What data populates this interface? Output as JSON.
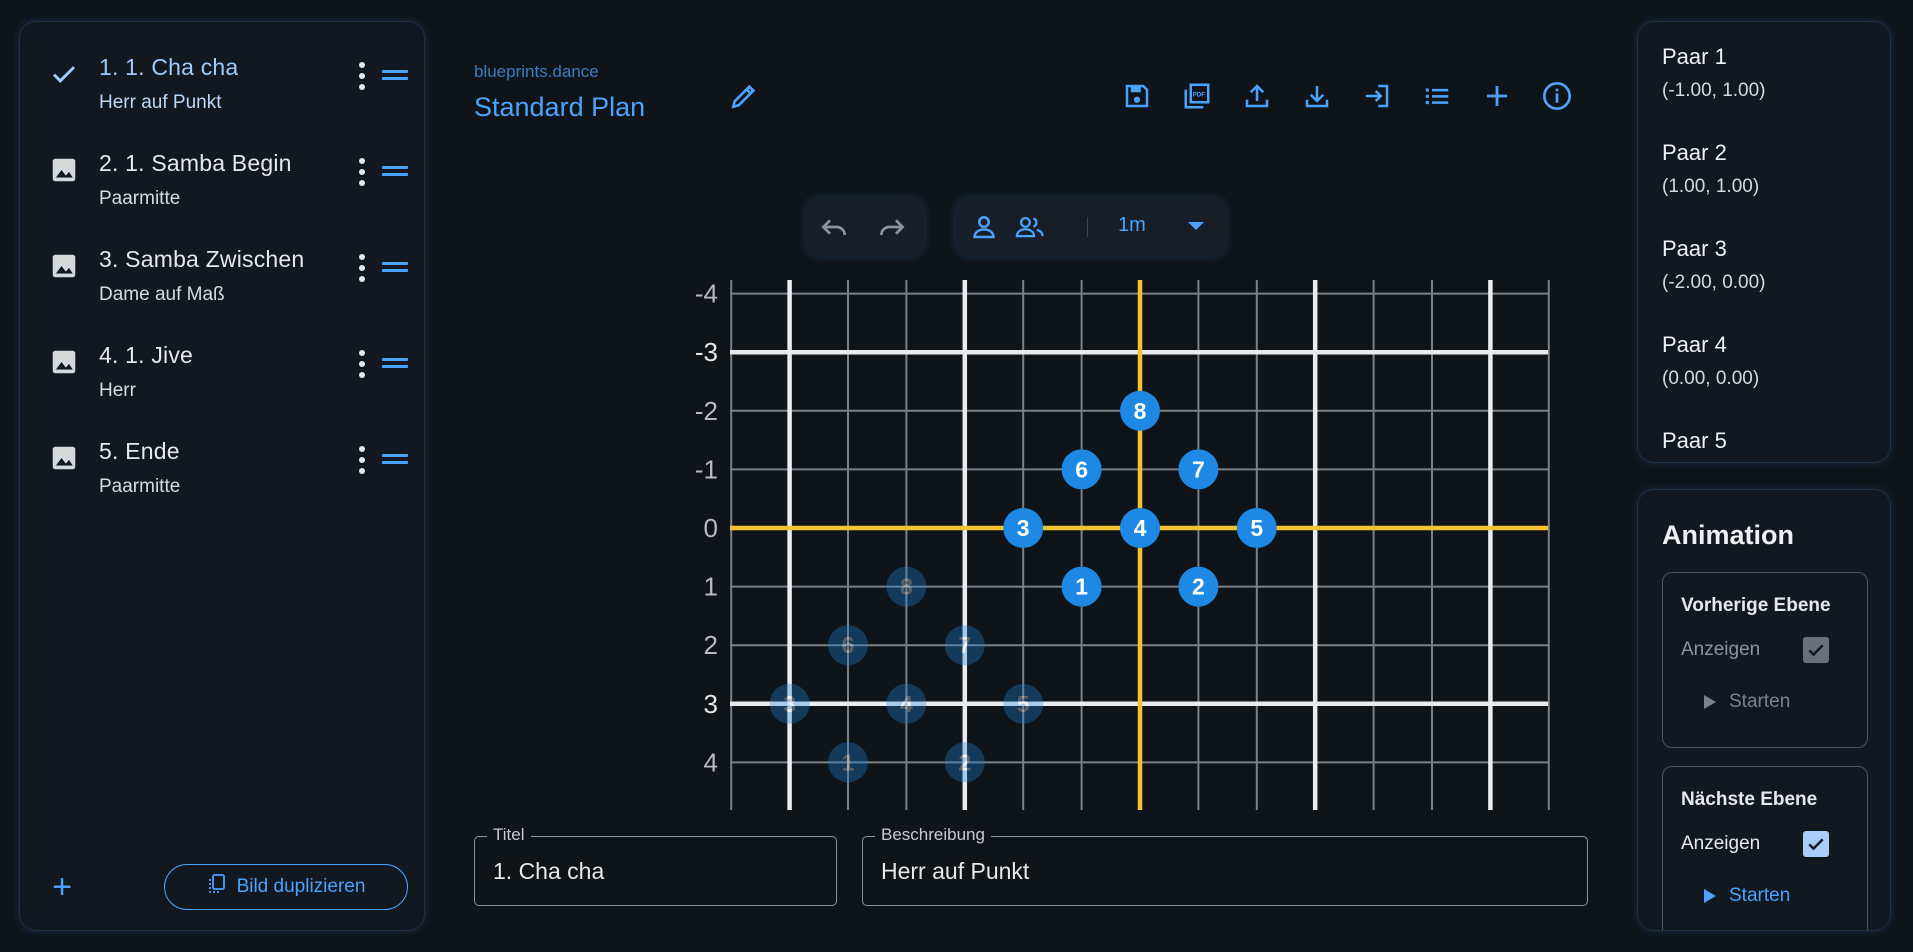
{
  "brand": "blueprints.dance",
  "plan_title": "Standard Plan",
  "sequence": [
    {
      "title": "1. 1. Cha cha",
      "subtitle": "Herr auf Punkt",
      "icon": "check-icon",
      "active": true
    },
    {
      "title": "2. 1. Samba Begin",
      "subtitle": "Paarmitte",
      "icon": "image-icon",
      "active": false
    },
    {
      "title": "3. Samba Zwischen",
      "subtitle": "Dame auf Maß",
      "icon": "image-icon",
      "active": false
    },
    {
      "title": "4. 1. Jive",
      "subtitle": "Herr",
      "icon": "image-icon",
      "active": false
    },
    {
      "title": "5. Ende",
      "subtitle": "Paarmitte",
      "icon": "image-icon",
      "active": false
    }
  ],
  "left_footer": {
    "add_label": "+",
    "duplicate_label": "Bild duplizieren"
  },
  "toolbar": [
    "save-icon",
    "pdf-icon",
    "upload-icon",
    "download-icon",
    "import-icon",
    "list-icon",
    "add-icon",
    "info-icon"
  ],
  "zoom": "1m",
  "grid": {
    "y_labels": [
      "-4",
      "-3",
      "-2",
      "-1",
      "0",
      "1",
      "2",
      "3",
      "4"
    ],
    "x_range": [
      -7,
      7
    ],
    "y_range": [
      -4,
      4
    ],
    "major_every": 3,
    "current_positions": [
      {
        "label": "1",
        "x": -1,
        "y": 1
      },
      {
        "label": "2",
        "x": 1,
        "y": 1
      },
      {
        "label": "3",
        "x": -2,
        "y": 0
      },
      {
        "label": "4",
        "x": 0,
        "y": 0
      },
      {
        "label": "5",
        "x": 2,
        "y": 0
      },
      {
        "label": "6",
        "x": -1,
        "y": -1
      },
      {
        "label": "7",
        "x": 1,
        "y": -1
      },
      {
        "label": "8",
        "x": 0,
        "y": -2
      }
    ],
    "next_positions": [
      {
        "label": "1",
        "x": -5,
        "y": 4
      },
      {
        "label": "2",
        "x": -3,
        "y": 4
      },
      {
        "label": "3",
        "x": -6,
        "y": 3
      },
      {
        "label": "4",
        "x": -4,
        "y": 3
      },
      {
        "label": "5",
        "x": -2,
        "y": 3
      },
      {
        "label": "6",
        "x": -5,
        "y": 2
      },
      {
        "label": "7",
        "x": -3,
        "y": 2
      },
      {
        "label": "8",
        "x": -4,
        "y": 1
      }
    ],
    "colors": {
      "axis": "#f2c230",
      "major": "#e9ebee",
      "minor": "#7b8087",
      "marker": "#1e88e5"
    }
  },
  "fields": {
    "title_label": "Titel",
    "title_value": "1. Cha cha",
    "description_label": "Beschreibung",
    "description_value": "Herr auf Punkt"
  },
  "pairs": [
    {
      "name": "Paar 1",
      "pos": "(-1.00, 1.00)"
    },
    {
      "name": "Paar 2",
      "pos": "(1.00, 1.00)"
    },
    {
      "name": "Paar 3",
      "pos": "(-2.00, 0.00)"
    },
    {
      "name": "Paar 4",
      "pos": "(0.00, 0.00)"
    },
    {
      "name": "Paar 5",
      "pos": ""
    }
  ],
  "animation": {
    "title": "Animation",
    "previous": {
      "title": "Vorherige Ebene",
      "show_label": "Anzeigen",
      "start_label": "Starten",
      "checked": true,
      "enabled": false
    },
    "next": {
      "title": "Nächste Ebene",
      "show_label": "Anzeigen",
      "start_label": "Starten",
      "checked": true,
      "enabled": true
    }
  }
}
